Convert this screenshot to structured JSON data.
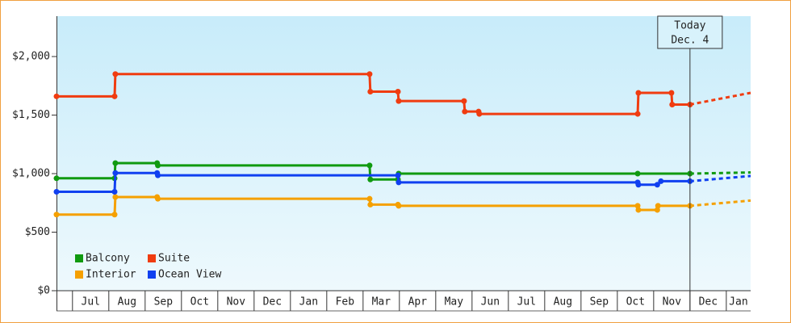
{
  "chart_data": {
    "type": "line",
    "categories": [
      "Jul",
      "Aug",
      "Sep",
      "Oct",
      "Nov",
      "Dec",
      "Jan",
      "Feb",
      "Mar",
      "Apr",
      "May",
      "Jun",
      "Jul",
      "Aug",
      "Sep",
      "Oct",
      "Nov",
      "Dec",
      "Jan"
    ],
    "xlim": [
      -0.44,
      18.67
    ],
    "ylim": [
      0,
      2345
    ],
    "yticks": [
      {
        "value": 0,
        "label": "$0"
      },
      {
        "value": 500,
        "label": "$500"
      },
      {
        "value": 1000,
        "label": "$1,000"
      },
      {
        "value": 1500,
        "label": "$1,500"
      },
      {
        "value": 2000,
        "label": "$2,000"
      }
    ],
    "series": [
      {
        "name": "Balcony",
        "color": "#109a10",
        "x": [
          -0.44,
          1.16,
          1.18,
          2.33,
          2.35,
          8.18,
          8.2,
          8.96,
          8.98,
          15.56,
          17.0
        ],
        "values": [
          960,
          960,
          1090,
          1090,
          1070,
          1070,
          950,
          950,
          1000,
          1000,
          1000
        ],
        "forecast": [
          1000,
          1010
        ]
      },
      {
        "name": "Suite",
        "color": "#f03c10",
        "x": [
          -0.44,
          1.16,
          1.18,
          8.18,
          8.2,
          8.96,
          8.98,
          10.78,
          10.8,
          11.18,
          11.2,
          15.56,
          15.58,
          16.49,
          16.51,
          17.0
        ],
        "values": [
          1660,
          1660,
          1850,
          1850,
          1700,
          1700,
          1620,
          1620,
          1530,
          1530,
          1510,
          1510,
          1690,
          1690,
          1590,
          1590
        ],
        "forecast": [
          1590,
          1690
        ]
      },
      {
        "name": "Interior",
        "color": "#f5a000",
        "x": [
          -0.44,
          1.16,
          1.18,
          2.33,
          2.35,
          8.18,
          8.2,
          8.96,
          8.98,
          15.56,
          15.58,
          16.1,
          16.12,
          17.0
        ],
        "values": [
          650,
          650,
          800,
          800,
          785,
          785,
          735,
          735,
          725,
          725,
          690,
          690,
          725,
          725
        ],
        "forecast": [
          725,
          770
        ]
      },
      {
        "name": "Ocean View",
        "color": "#1040f0",
        "x": [
          -0.44,
          1.16,
          1.18,
          2.33,
          2.35,
          8.96,
          8.98,
          15.56,
          15.58,
          16.1,
          16.2,
          17.0
        ],
        "values": [
          845,
          845,
          1005,
          1005,
          985,
          985,
          925,
          925,
          905,
          905,
          935,
          935
        ],
        "forecast": [
          935,
          980
        ]
      }
    ],
    "forecast_x": [
      17.0,
      18.67
    ],
    "annotation": {
      "text": [
        "Today",
        "Dec. 4"
      ],
      "x": 17.0
    }
  }
}
